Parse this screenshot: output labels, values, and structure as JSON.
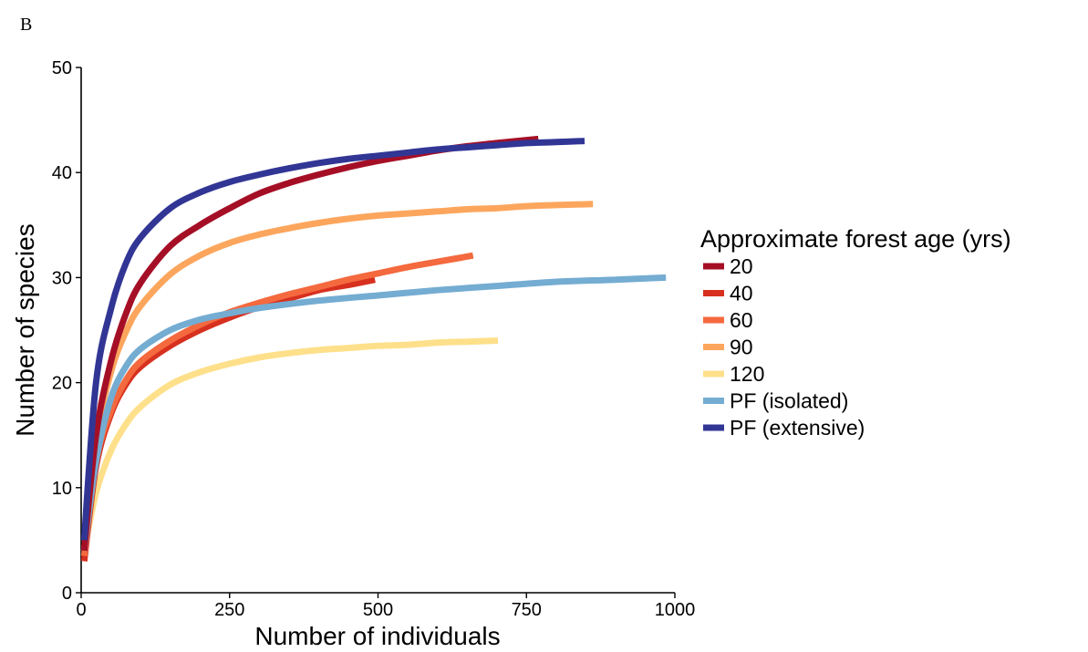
{
  "panel_label": "B",
  "chart_data": {
    "type": "line",
    "xlabel": "Number of individuals",
    "ylabel": "Number of species",
    "xlim": [
      0,
      1000
    ],
    "ylim": [
      0,
      50
    ],
    "xticks": [
      0,
      250,
      500,
      750,
      1000
    ],
    "yticks": [
      0,
      10,
      20,
      30,
      40,
      50
    ],
    "grid": false,
    "legend": {
      "title": "Approximate forest age (yrs)",
      "placement": "right"
    },
    "series": [
      {
        "name": "20",
        "color": "#a50f26",
        "x": [
          5,
          25,
          50,
          75,
          100,
          150,
          200,
          250,
          300,
          350,
          400,
          450,
          500,
          550,
          600,
          650,
          700,
          770
        ],
        "y": [
          4,
          15,
          22,
          26.5,
          29.5,
          33,
          35,
          36.6,
          38,
          39,
          39.8,
          40.5,
          41.1,
          41.6,
          42.1,
          42.5,
          42.8,
          43.2
        ]
      },
      {
        "name": "40",
        "color": "#d7301f",
        "x": [
          5,
          25,
          50,
          75,
          100,
          150,
          200,
          250,
          300,
          350,
          400,
          450,
          495
        ],
        "y": [
          3,
          12,
          17,
          19.8,
          21.5,
          23.5,
          25,
          26.2,
          27.2,
          28,
          28.8,
          29.3,
          29.8
        ]
      },
      {
        "name": "60",
        "color": "#f4693e",
        "x": [
          5,
          25,
          50,
          75,
          100,
          150,
          200,
          250,
          300,
          350,
          400,
          450,
          500,
          550,
          600,
          660
        ],
        "y": [
          3.5,
          12.5,
          17.3,
          20.2,
          22,
          24,
          25.5,
          26.7,
          27.6,
          28.4,
          29.1,
          29.8,
          30.4,
          31,
          31.5,
          32.1
        ]
      },
      {
        "name": "90",
        "color": "#fca65d",
        "x": [
          5,
          25,
          50,
          75,
          100,
          150,
          200,
          250,
          300,
          350,
          400,
          450,
          500,
          550,
          600,
          650,
          700,
          750,
          800,
          862
        ],
        "y": [
          4,
          14.5,
          21,
          24.8,
          27.3,
          30.3,
          32.1,
          33.3,
          34.1,
          34.7,
          35.2,
          35.6,
          35.9,
          36.1,
          36.3,
          36.5,
          36.6,
          36.8,
          36.9,
          37
        ]
      },
      {
        "name": "120",
        "color": "#fee08b",
        "x": [
          5,
          25,
          50,
          75,
          100,
          150,
          200,
          250,
          300,
          350,
          400,
          450,
          500,
          550,
          600,
          650,
          702
        ],
        "y": [
          4,
          9.5,
          13.5,
          16,
          17.7,
          19.8,
          21,
          21.8,
          22.4,
          22.8,
          23.1,
          23.3,
          23.5,
          23.6,
          23.8,
          23.9,
          24
        ]
      },
      {
        "name": "PF (isolated)",
        "color": "#74acd2",
        "x": [
          5,
          25,
          50,
          75,
          100,
          150,
          200,
          250,
          300,
          400,
          500,
          600,
          700,
          800,
          900,
          985
        ],
        "y": [
          4,
          12.5,
          18.5,
          21.5,
          23.2,
          25,
          26,
          26.6,
          27.1,
          27.8,
          28.3,
          28.8,
          29.2,
          29.6,
          29.8,
          30
        ]
      },
      {
        "name": "PF (extensive)",
        "color": "#313695",
        "x": [
          5,
          25,
          50,
          75,
          100,
          150,
          200,
          250,
          300,
          350,
          400,
          450,
          500,
          550,
          600,
          650,
          700,
          750,
          800,
          848
        ],
        "y": [
          5,
          20,
          27,
          31.3,
          33.8,
          36.6,
          38.1,
          39.1,
          39.8,
          40.4,
          40.9,
          41.3,
          41.6,
          41.9,
          42.2,
          42.4,
          42.6,
          42.8,
          42.9,
          43
        ]
      }
    ]
  }
}
